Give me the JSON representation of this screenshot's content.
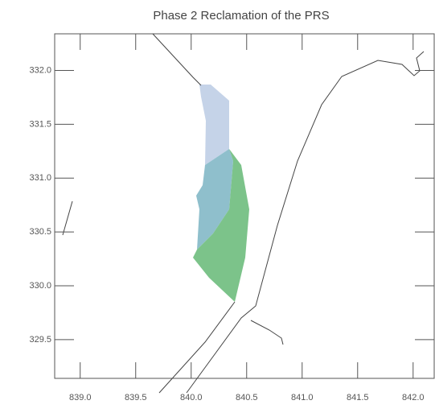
{
  "chart_data": {
    "type": "map",
    "title": "Phase 2 Reclamation of the PRS",
    "xlim": [
      838.77,
      842.19
    ],
    "ylim": [
      329.14,
      332.34
    ],
    "xticks": [
      {
        "value": 839,
        "label": "839.0"
      },
      839.5,
      {
        "value": 840,
        "label": "840.0"
      },
      840.5,
      {
        "value": 841,
        "label": "841.0"
      },
      841.5,
      {
        "value": 842,
        "label": "842.0"
      }
    ],
    "yticks": [
      {
        "value": 329.5,
        "label": "329.5"
      },
      {
        "value": 330,
        "label": "330.0"
      },
      {
        "value": 330.5,
        "label": "330.5"
      },
      {
        "value": 331,
        "label": "331.0"
      },
      {
        "value": 331.5,
        "label": "331.5"
      },
      {
        "value": 332,
        "label": "332.0"
      }
    ]
  }
}
